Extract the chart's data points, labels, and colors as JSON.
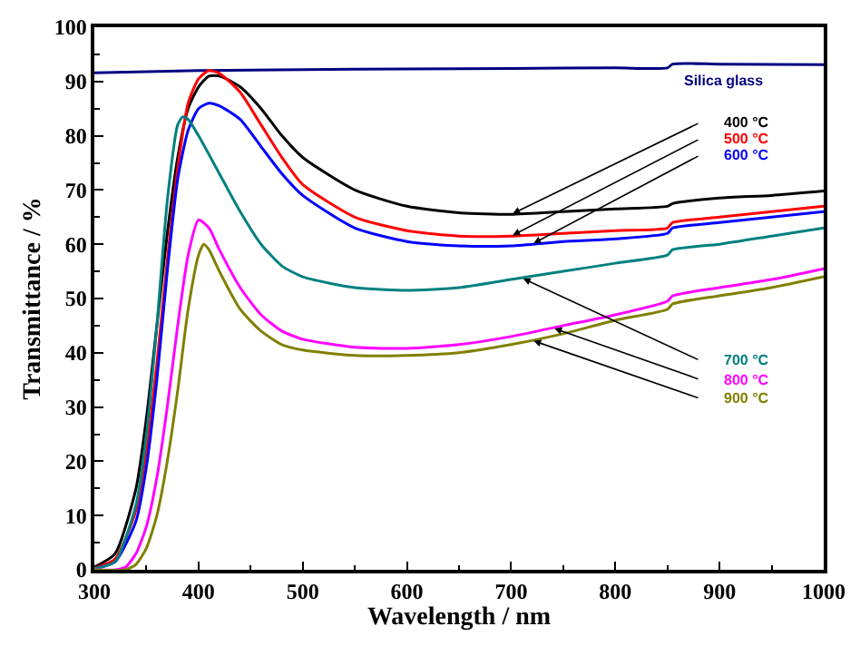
{
  "chart_data": {
    "type": "line",
    "xlabel": "Wavelength / nm",
    "ylabel": "Transmittance / %",
    "xlim": [
      300,
      1000
    ],
    "xticks": [
      300,
      400,
      500,
      600,
      700,
      800,
      900,
      1000
    ],
    "ylim": [
      0,
      100
    ],
    "yticks": [
      0,
      10,
      20,
      30,
      40,
      50,
      60,
      70,
      80,
      90,
      100
    ],
    "legend": false,
    "marker": "none",
    "line_style": "solid",
    "series": [
      {
        "name": "Silica glass",
        "color": "#000080",
        "x": [
          300,
          400,
          500,
          600,
          700,
          800,
          850,
          855,
          900,
          1000
        ],
        "values": [
          91.6,
          92,
          92.2,
          92.3,
          92.4,
          92.5,
          92.5,
          93.2,
          93.2,
          93.1
        ]
      },
      {
        "name": "400 °C",
        "color": "#000000",
        "x": [
          300,
          320,
          340,
          350,
          360,
          370,
          380,
          390,
          400,
          410,
          420,
          440,
          460,
          480,
          500,
          550,
          600,
          650,
          700,
          750,
          800,
          850,
          855,
          900,
          950,
          1000
        ],
        "values": [
          0.5,
          3,
          15,
          28,
          45,
          62,
          76,
          85,
          89,
          91,
          91,
          89,
          85,
          80,
          76,
          70,
          67,
          65.8,
          65.5,
          66,
          66.5,
          67,
          67.5,
          68.5,
          69,
          69.8
        ]
      },
      {
        "name": "500 °C",
        "color": "#ff0000",
        "x": [
          300,
          320,
          340,
          350,
          360,
          370,
          380,
          390,
          400,
          410,
          420,
          440,
          460,
          480,
          500,
          550,
          600,
          650,
          700,
          750,
          800,
          850,
          855,
          900,
          950,
          1000
        ],
        "values": [
          0.3,
          2,
          11,
          22,
          38,
          57,
          74,
          86,
          90.5,
          92,
          91.5,
          88,
          82,
          76,
          71,
          65,
          62.5,
          61.5,
          61.5,
          62,
          62.5,
          63,
          64,
          65,
          66,
          67
        ]
      },
      {
        "name": "600 °C",
        "color": "#0000ff",
        "x": [
          300,
          320,
          340,
          350,
          360,
          370,
          380,
          390,
          400,
          410,
          420,
          440,
          460,
          480,
          500,
          550,
          600,
          650,
          700,
          750,
          800,
          850,
          855,
          900,
          950,
          1000
        ],
        "values": [
          0.2,
          1.5,
          9,
          19,
          35,
          55,
          72,
          81,
          85,
          86,
          85.5,
          83,
          78,
          73,
          69,
          63,
          60.5,
          59.7,
          59.7,
          60.5,
          61,
          62,
          63,
          64,
          65,
          66
        ]
      },
      {
        "name": "700 °C",
        "color": "#008080",
        "x": [
          300,
          320,
          340,
          350,
          360,
          370,
          380,
          385,
          390,
          400,
          420,
          440,
          460,
          480,
          500,
          550,
          600,
          650,
          700,
          750,
          800,
          850,
          855,
          900,
          950,
          1000
        ],
        "values": [
          0.2,
          1.5,
          12,
          25,
          45,
          68,
          82,
          83.5,
          83,
          80,
          73,
          66,
          60,
          56,
          54,
          52,
          51.5,
          52,
          53.5,
          55,
          56.5,
          58,
          59,
          60,
          61.5,
          63
        ]
      },
      {
        "name": "800 °C",
        "color": "#ff00ff",
        "x": [
          300,
          320,
          330,
          340,
          350,
          360,
          370,
          380,
          390,
          400,
          410,
          420,
          440,
          460,
          480,
          500,
          550,
          600,
          650,
          700,
          750,
          800,
          850,
          855,
          900,
          950,
          1000
        ],
        "values": [
          0,
          0,
          0.5,
          3,
          8,
          17,
          30,
          45,
          58,
          64.5,
          63,
          59,
          52,
          47,
          44,
          42.5,
          41,
          40.8,
          41.5,
          43,
          45,
          47,
          49.5,
          50.5,
          52,
          53.5,
          55.5
        ]
      },
      {
        "name": "900 °C",
        "color": "#808000",
        "x": [
          300,
          330,
          340,
          350,
          360,
          370,
          380,
          390,
          400,
          405,
          410,
          420,
          440,
          460,
          480,
          500,
          550,
          600,
          650,
          700,
          750,
          800,
          850,
          855,
          900,
          950,
          1000
        ],
        "values": [
          0,
          0,
          1,
          4,
          10,
          20,
          33,
          48,
          58,
          60,
          59,
          55,
          48,
          44,
          41.5,
          40.5,
          39.5,
          39.5,
          40,
          41.5,
          43.5,
          46,
          48,
          49,
          50.5,
          52,
          54
        ]
      }
    ]
  }
}
